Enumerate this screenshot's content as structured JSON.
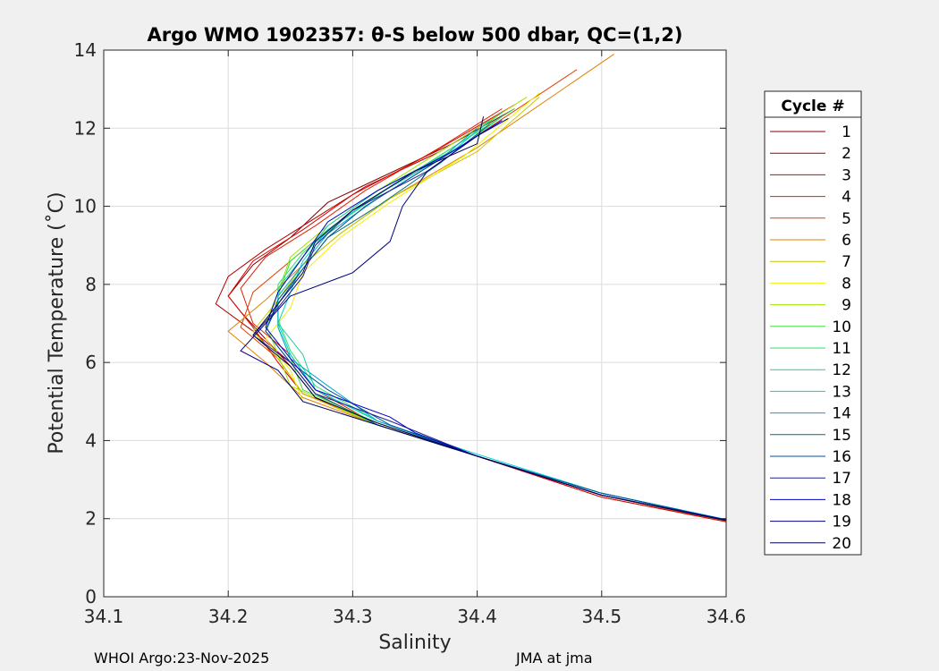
{
  "chart_data": {
    "type": "line",
    "title": "Argo WMO 1902357: θ-S below 500 dbar,  QC=(1,2)",
    "xlabel": "Salinity",
    "ylabel": "Potential Temperature (˚C)",
    "xlim": [
      34.1,
      34.6
    ],
    "ylim": [
      0,
      14
    ],
    "xticks": [
      "34.1",
      "34.2",
      "34.3",
      "34.4",
      "34.5",
      "34.6"
    ],
    "yticks": [
      "0",
      "2",
      "4",
      "6",
      "8",
      "10",
      "12",
      "14"
    ],
    "grid": true,
    "legend": {
      "title": "Cycle #",
      "placement": "right-outside",
      "labels": [
        "1",
        "2",
        "3",
        "4",
        "5",
        "6",
        "7",
        "8",
        "9",
        "10",
        "11",
        "12",
        "13",
        "14",
        "15",
        "16",
        "17",
        "18",
        "19",
        "20"
      ]
    },
    "series": [
      {
        "name": "1",
        "color": "#800000",
        "points": [
          [
            34.6,
            1.95
          ],
          [
            34.5,
            2.6
          ],
          [
            34.4,
            3.6
          ],
          [
            34.32,
            4.4
          ],
          [
            34.27,
            5.1
          ],
          [
            34.25,
            5.9
          ],
          [
            34.23,
            6.6
          ],
          [
            34.21,
            7.3
          ],
          [
            34.2,
            7.7
          ],
          [
            34.22,
            8.5
          ],
          [
            34.25,
            9.2
          ],
          [
            34.28,
            10.1
          ],
          [
            34.32,
            10.7
          ],
          [
            34.38,
            11.6
          ],
          [
            34.43,
            12.5
          ]
        ]
      },
      {
        "name": "2",
        "color": "#b00000",
        "points": [
          [
            34.6,
            1.93
          ],
          [
            34.5,
            2.55
          ],
          [
            34.4,
            3.6
          ],
          [
            34.32,
            4.4
          ],
          [
            34.27,
            5.2
          ],
          [
            34.25,
            6.0
          ],
          [
            34.22,
            6.8
          ],
          [
            34.19,
            7.5
          ],
          [
            34.2,
            8.2
          ],
          [
            34.23,
            8.9
          ],
          [
            34.27,
            9.7
          ],
          [
            34.31,
            10.5
          ],
          [
            34.37,
            11.4
          ],
          [
            34.42,
            12.4
          ]
        ]
      },
      {
        "name": "3",
        "color": "#dd0000",
        "points": [
          [
            34.6,
            1.92
          ],
          [
            34.5,
            2.55
          ],
          [
            34.4,
            3.6
          ],
          [
            34.32,
            4.45
          ],
          [
            34.26,
            5.2
          ],
          [
            34.24,
            6.0
          ],
          [
            34.22,
            6.9
          ],
          [
            34.2,
            7.7
          ],
          [
            34.22,
            8.6
          ],
          [
            34.26,
            9.4
          ],
          [
            34.3,
            10.3
          ],
          [
            34.36,
            11.3
          ],
          [
            34.43,
            12.6
          ]
        ]
      },
      {
        "name": "4",
        "color": "#e02000",
        "points": [
          [
            34.6,
            1.94
          ],
          [
            34.5,
            2.6
          ],
          [
            34.4,
            3.6
          ],
          [
            34.32,
            4.4
          ],
          [
            34.27,
            5.3
          ],
          [
            34.25,
            6.2
          ],
          [
            34.22,
            7.0
          ],
          [
            34.21,
            7.9
          ],
          [
            34.23,
            8.7
          ],
          [
            34.27,
            9.5
          ],
          [
            34.31,
            10.4
          ],
          [
            34.37,
            11.5
          ],
          [
            34.42,
            12.5
          ]
        ]
      },
      {
        "name": "5",
        "color": "#e04000",
        "points": [
          [
            34.6,
            1.93
          ],
          [
            34.5,
            2.6
          ],
          [
            34.4,
            3.6
          ],
          [
            34.32,
            4.4
          ],
          [
            34.26,
            5.2
          ],
          [
            34.24,
            6.1
          ],
          [
            34.21,
            6.9
          ],
          [
            34.22,
            7.8
          ],
          [
            34.25,
            8.6
          ],
          [
            34.28,
            9.4
          ],
          [
            34.32,
            10.3
          ],
          [
            34.39,
            11.6
          ],
          [
            34.48,
            13.5
          ]
        ]
      },
      {
        "name": "6",
        "color": "#e08000",
        "points": [
          [
            34.6,
            1.95
          ],
          [
            34.5,
            2.6
          ],
          [
            34.4,
            3.6
          ],
          [
            34.32,
            4.4
          ],
          [
            34.26,
            5.1
          ],
          [
            34.23,
            6.0
          ],
          [
            34.2,
            6.8
          ],
          [
            34.23,
            7.6
          ],
          [
            34.26,
            8.5
          ],
          [
            34.29,
            9.3
          ],
          [
            34.33,
            10.2
          ],
          [
            34.4,
            11.5
          ],
          [
            34.51,
            13.9
          ]
        ]
      },
      {
        "name": "7",
        "color": "#c8c800",
        "points": [
          [
            34.6,
            1.96
          ],
          [
            34.5,
            2.6
          ],
          [
            34.4,
            3.6
          ],
          [
            34.32,
            4.4
          ],
          [
            34.26,
            5.2
          ],
          [
            34.24,
            6.1
          ],
          [
            34.22,
            6.8
          ],
          [
            34.24,
            7.6
          ],
          [
            34.26,
            8.5
          ],
          [
            34.29,
            9.3
          ],
          [
            34.33,
            10.2
          ],
          [
            34.4,
            11.4
          ],
          [
            34.45,
            12.8
          ]
        ]
      },
      {
        "name": "8",
        "color": "#f0f000",
        "points": [
          [
            34.6,
            1.95
          ],
          [
            34.5,
            2.6
          ],
          [
            34.4,
            3.6
          ],
          [
            34.32,
            4.4
          ],
          [
            34.26,
            5.0
          ],
          [
            34.25,
            5.8
          ],
          [
            34.23,
            6.6
          ],
          [
            34.25,
            7.4
          ],
          [
            34.26,
            8.3
          ],
          [
            34.29,
            9.2
          ],
          [
            34.33,
            10.1
          ],
          [
            34.39,
            11.3
          ],
          [
            34.45,
            12.9
          ]
        ]
      },
      {
        "name": "9",
        "color": "#a0e000",
        "points": [
          [
            34.6,
            1.96
          ],
          [
            34.5,
            2.6
          ],
          [
            34.4,
            3.6
          ],
          [
            34.32,
            4.4
          ],
          [
            34.25,
            5.4
          ],
          [
            34.24,
            6.2
          ],
          [
            34.23,
            7.0
          ],
          [
            34.24,
            7.8
          ],
          [
            34.25,
            8.7
          ],
          [
            34.28,
            9.5
          ],
          [
            34.32,
            10.4
          ],
          [
            34.38,
            11.6
          ],
          [
            34.44,
            12.8
          ]
        ]
      },
      {
        "name": "10",
        "color": "#40e040",
        "points": [
          [
            34.6,
            1.97
          ],
          [
            34.5,
            2.65
          ],
          [
            34.4,
            3.6
          ],
          [
            34.32,
            4.45
          ],
          [
            34.26,
            5.3
          ],
          [
            34.25,
            6.1
          ],
          [
            34.24,
            6.9
          ],
          [
            34.24,
            7.7
          ],
          [
            34.25,
            8.6
          ],
          [
            34.28,
            9.4
          ],
          [
            34.32,
            10.3
          ],
          [
            34.38,
            11.5
          ],
          [
            34.43,
            12.5
          ]
        ]
      },
      {
        "name": "11",
        "color": "#30e070",
        "points": [
          [
            34.6,
            1.97
          ],
          [
            34.5,
            2.65
          ],
          [
            34.4,
            3.6
          ],
          [
            34.32,
            4.5
          ],
          [
            34.27,
            5.4
          ],
          [
            34.25,
            6.3
          ],
          [
            34.24,
            7.1
          ],
          [
            34.24,
            8.0
          ],
          [
            34.26,
            8.8
          ],
          [
            34.29,
            9.6
          ],
          [
            34.33,
            10.5
          ],
          [
            34.39,
            11.7
          ],
          [
            34.42,
            12.4
          ]
        ]
      },
      {
        "name": "12",
        "color": "#20d0a0",
        "points": [
          [
            34.6,
            1.98
          ],
          [
            34.5,
            2.65
          ],
          [
            34.4,
            3.6
          ],
          [
            34.32,
            4.5
          ],
          [
            34.27,
            5.3
          ],
          [
            34.26,
            6.2
          ],
          [
            34.24,
            7.0
          ],
          [
            34.24,
            7.9
          ],
          [
            34.26,
            8.7
          ],
          [
            34.28,
            9.5
          ],
          [
            34.32,
            10.4
          ],
          [
            34.39,
            11.6
          ],
          [
            34.42,
            12.3
          ]
        ]
      },
      {
        "name": "13",
        "color": "#00d0d0",
        "points": [
          [
            34.6,
            1.98
          ],
          [
            34.5,
            2.65
          ],
          [
            34.4,
            3.65
          ],
          [
            34.32,
            4.5
          ],
          [
            34.27,
            5.3
          ],
          [
            34.25,
            6.2
          ],
          [
            34.24,
            7.0
          ],
          [
            34.25,
            7.8
          ],
          [
            34.26,
            8.6
          ],
          [
            34.28,
            9.4
          ],
          [
            34.32,
            10.3
          ],
          [
            34.38,
            11.4
          ],
          [
            34.41,
            12.2
          ]
        ]
      },
      {
        "name": "14",
        "color": "#00a8c8",
        "points": [
          [
            34.6,
            1.97
          ],
          [
            34.5,
            2.65
          ],
          [
            34.4,
            3.6
          ],
          [
            34.32,
            4.5
          ],
          [
            34.28,
            5.4
          ],
          [
            34.25,
            6.1
          ],
          [
            34.24,
            6.9
          ],
          [
            34.24,
            7.7
          ],
          [
            34.26,
            8.5
          ],
          [
            34.28,
            9.3
          ],
          [
            34.32,
            10.2
          ],
          [
            34.37,
            11.2
          ],
          [
            34.4,
            12.0
          ]
        ]
      },
      {
        "name": "15",
        "color": "#007070",
        "points": [
          [
            34.6,
            1.96
          ],
          [
            34.5,
            2.6
          ],
          [
            34.4,
            3.6
          ],
          [
            34.32,
            4.4
          ],
          [
            34.27,
            5.2
          ],
          [
            34.25,
            6.0
          ],
          [
            34.23,
            6.8
          ],
          [
            34.24,
            7.6
          ],
          [
            34.26,
            8.4
          ],
          [
            34.28,
            9.2
          ],
          [
            34.32,
            10.0
          ],
          [
            34.37,
            11.1
          ],
          [
            34.41,
            12.1
          ]
        ]
      },
      {
        "name": "16",
        "color": "#0050a0",
        "points": [
          [
            34.6,
            1.97
          ],
          [
            34.5,
            2.65
          ],
          [
            34.4,
            3.6
          ],
          [
            34.33,
            4.4
          ],
          [
            34.28,
            5.3
          ],
          [
            34.25,
            6.0
          ],
          [
            34.23,
            6.8
          ],
          [
            34.24,
            7.5
          ],
          [
            34.26,
            8.4
          ],
          [
            34.28,
            9.2
          ],
          [
            34.31,
            10.0
          ],
          [
            34.36,
            11.0
          ],
          [
            34.41,
            12.0
          ]
        ]
      },
      {
        "name": "17",
        "color": "#202090",
        "points": [
          [
            34.6,
            1.96
          ],
          [
            34.5,
            2.6
          ],
          [
            34.4,
            3.6
          ],
          [
            34.33,
            4.5
          ],
          [
            34.27,
            5.2
          ],
          [
            34.25,
            6.0
          ],
          [
            34.22,
            6.7
          ],
          [
            34.24,
            7.4
          ],
          [
            34.26,
            8.2
          ],
          [
            34.27,
            9.0
          ],
          [
            34.3,
            9.9
          ],
          [
            34.36,
            10.9
          ],
          [
            34.4,
            11.8
          ]
        ]
      },
      {
        "name": "18",
        "color": "#0000c0",
        "points": [
          [
            34.6,
            1.97
          ],
          [
            34.5,
            2.6
          ],
          [
            34.4,
            3.6
          ],
          [
            34.35,
            4.2
          ],
          [
            34.33,
            4.6
          ],
          [
            34.27,
            5.3
          ],
          [
            34.25,
            6.1
          ],
          [
            34.23,
            6.9
          ],
          [
            34.24,
            7.8
          ],
          [
            34.26,
            8.7
          ],
          [
            34.28,
            9.6
          ],
          [
            34.32,
            10.4
          ],
          [
            34.38,
            11.4
          ],
          [
            34.42,
            12.2
          ]
        ]
      },
      {
        "name": "19",
        "color": "#000080",
        "points": [
          [
            34.6,
            1.96
          ],
          [
            34.5,
            2.6
          ],
          [
            34.4,
            3.6
          ],
          [
            34.32,
            4.4
          ],
          [
            34.26,
            5.0
          ],
          [
            34.24,
            5.8
          ],
          [
            34.21,
            6.3
          ],
          [
            34.23,
            7.0
          ],
          [
            34.25,
            7.7
          ],
          [
            34.3,
            8.3
          ],
          [
            34.33,
            9.1
          ],
          [
            34.34,
            10.0
          ],
          [
            34.36,
            10.9
          ],
          [
            34.4,
            11.8
          ],
          [
            34.425,
            12.25
          ]
        ]
      },
      {
        "name": "20",
        "color": "#000050",
        "points": [
          [
            34.6,
            1.95
          ],
          [
            34.5,
            2.6
          ],
          [
            34.4,
            3.6
          ],
          [
            34.32,
            4.45
          ],
          [
            34.27,
            5.1
          ],
          [
            34.25,
            5.9
          ],
          [
            34.22,
            6.7
          ],
          [
            34.24,
            7.5
          ],
          [
            34.26,
            8.3
          ],
          [
            34.27,
            9.1
          ],
          [
            34.3,
            9.9
          ],
          [
            34.35,
            10.9
          ],
          [
            34.4,
            11.6
          ],
          [
            34.405,
            12.3
          ]
        ]
      }
    ]
  },
  "footer": {
    "left": "WHOI Argo:23-Nov-2025",
    "right": "JMA at jma"
  }
}
